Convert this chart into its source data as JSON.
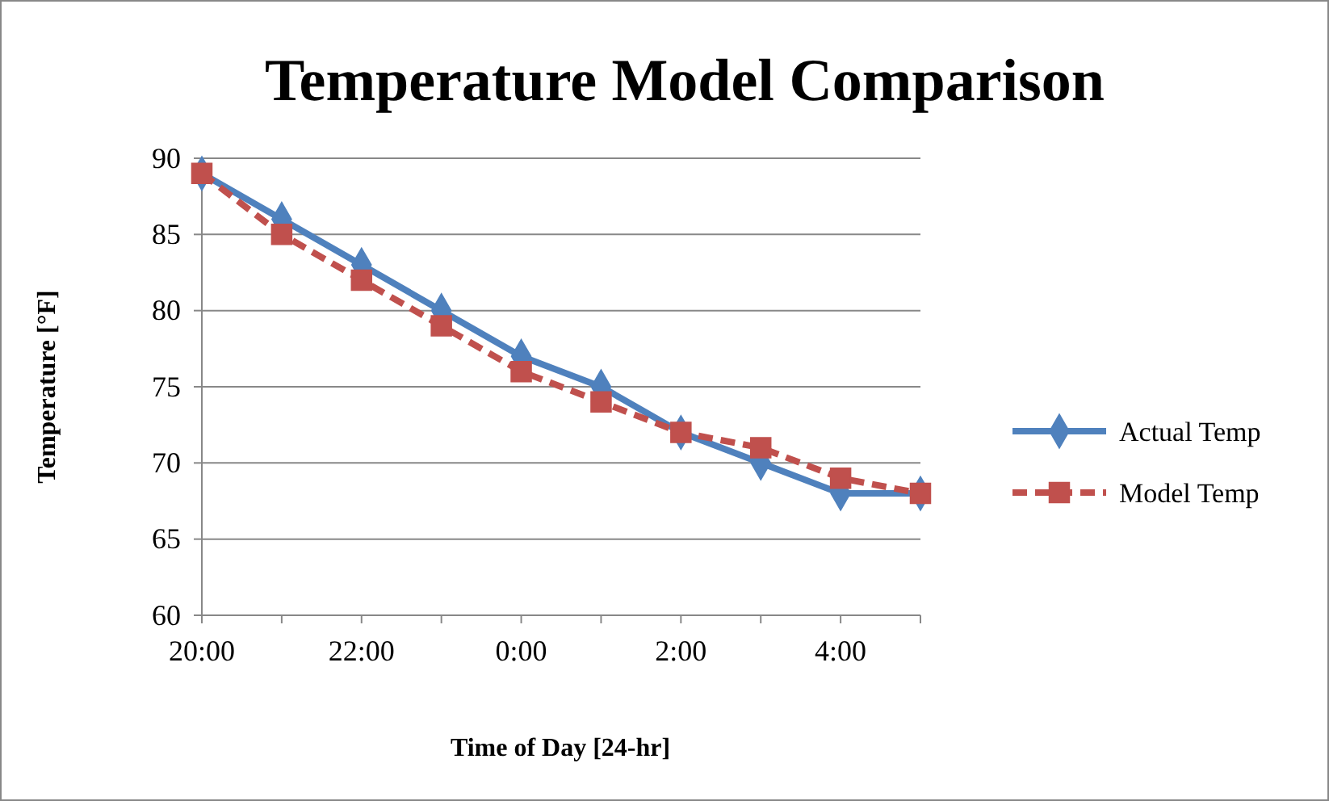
{
  "chart_data": {
    "type": "line",
    "title": "Temperature Model Comparison",
    "xlabel": "Time of Day  [24-hr]",
    "ylabel": "Temperature [°F]",
    "categories": [
      "20:00",
      null,
      "22:00",
      null,
      "0:00",
      null,
      "2:00",
      null,
      "4:00",
      null
    ],
    "ylim": [
      60,
      90
    ],
    "yticks": [
      60,
      65,
      70,
      75,
      80,
      85,
      90
    ],
    "grid": "y",
    "legend": "right",
    "series": [
      {
        "name": "Actual Temp",
        "color": "#4f81bd",
        "marker": "diamond",
        "line_style": "solid",
        "values": [
          89,
          86,
          83,
          80,
          77,
          75,
          72,
          70,
          68,
          68
        ]
      },
      {
        "name": "Model Temp",
        "color": "#c0504d",
        "marker": "square",
        "line_style": "dashed",
        "values": [
          89,
          85,
          82,
          79,
          76,
          74,
          72,
          71,
          69,
          68
        ]
      }
    ]
  }
}
